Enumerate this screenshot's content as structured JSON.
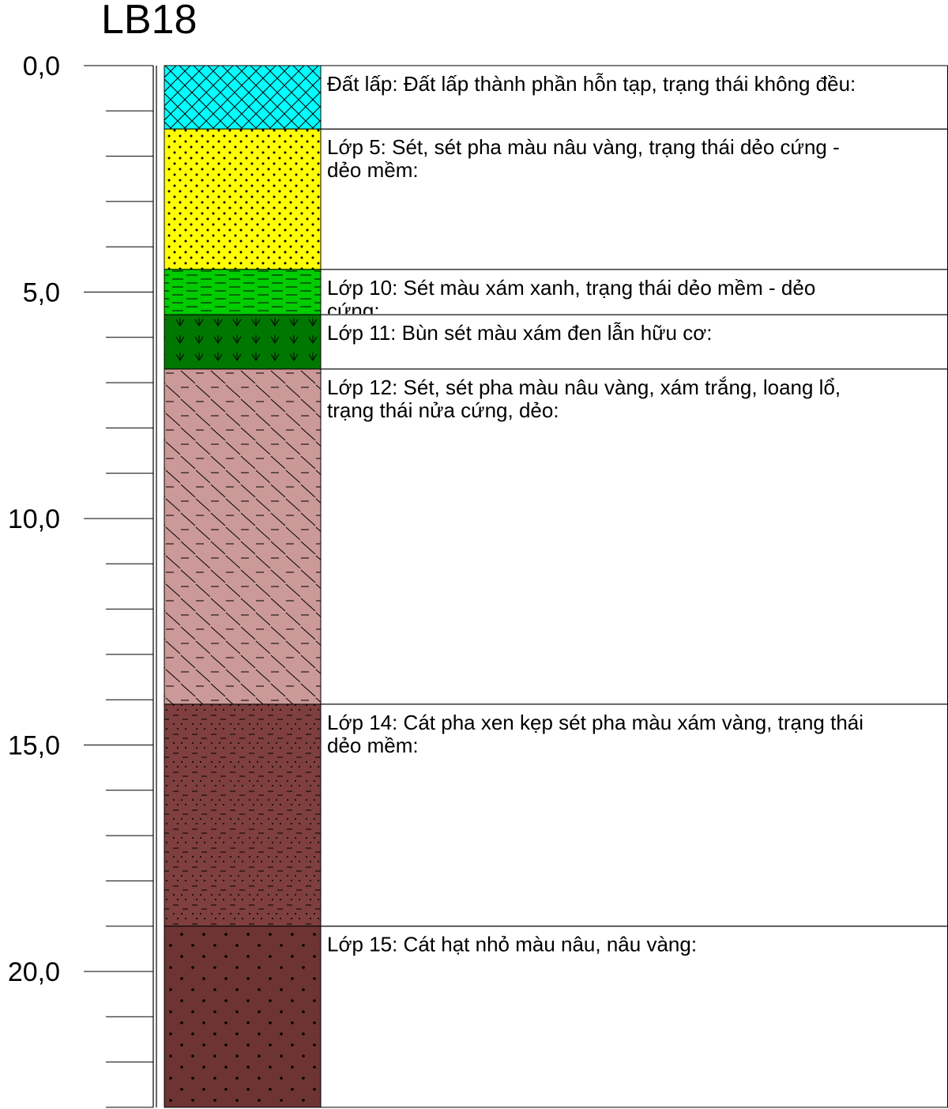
{
  "borehole": {
    "name": "LB18"
  },
  "depth_axis": {
    "unit": "m",
    "range": [
      0,
      23
    ],
    "major_step": 5,
    "minor_step": 1,
    "tick_labels": [
      "0,0",
      "5,0",
      "10,0",
      "15,0",
      "20,0"
    ]
  },
  "layers": [
    {
      "name": "Đất lấp",
      "top": 0.0,
      "bottom": 1.4,
      "color": "#00ffff",
      "pattern": "crosshatch",
      "line1": "Đất lấp: Đất lấp thành phần hỗn tạp, trạng thái không đều:",
      "line2": ""
    },
    {
      "name": "Lớp 5",
      "top": 1.4,
      "bottom": 4.5,
      "color": "#ffff00",
      "pattern": "dots",
      "line1": "Lớp 5: Sét, sét pha màu nâu vàng, trạng thái dẻo cứng -",
      "line2": "dẻo mềm:"
    },
    {
      "name": "Lớp 10",
      "top": 4.5,
      "bottom": 5.5,
      "color": "#00cc00",
      "pattern": "dashes",
      "line1": "Lớp 10: Sét màu xám xanh, trạng thái dẻo mềm - dẻo",
      "line2": "cứng:"
    },
    {
      "name": "Lớp 11",
      "top": 5.5,
      "bottom": 6.7,
      "color": "#007700",
      "pattern": "marsh",
      "line1": "Lớp 11: Bùn sét màu xám đen lẫn hữu cơ:",
      "line2": ""
    },
    {
      "name": "Lớp 12",
      "top": 6.7,
      "bottom": 14.1,
      "color": "#cc9999",
      "pattern": "diagonal-dashes",
      "line1": "Lớp 12: Sét, sét pha màu nâu vàng, xám trắng, loang lổ,",
      "line2": "trạng thái nửa cứng, dẻo:"
    },
    {
      "name": "Lớp 14",
      "top": 14.1,
      "bottom": 19.0,
      "color": "#7f3f3f",
      "pattern": "dots-dashes",
      "line1": "Lớp 14: Cát pha xen kẹp sét pha màu xám vàng, trạng thái",
      "line2": "dẻo mềm:"
    },
    {
      "name": "Lớp 15",
      "top": 19.0,
      "bottom": 23.0,
      "color": "#6e3434",
      "pattern": "coarse-dots",
      "line1": "Lớp 15: Cát hạt nhỏ màu nâu, nâu vàng:",
      "line2": ""
    }
  ]
}
